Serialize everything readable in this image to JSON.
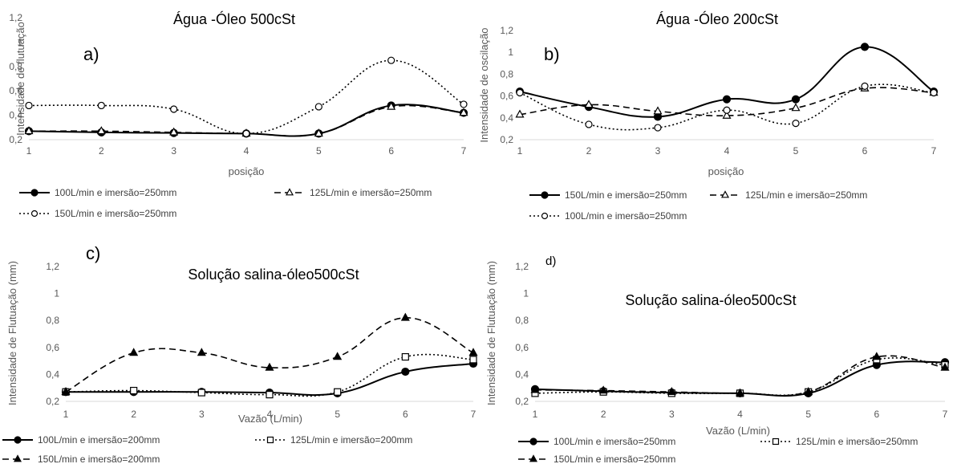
{
  "chart_data": [
    {
      "id": "a",
      "type": "line",
      "panel_letter": "a)",
      "title": "Água -Óleo 500cSt",
      "xlabel": "posição",
      "ylabel": "Intensidade de flutuação",
      "x": [
        1,
        2,
        3,
        4,
        5,
        6,
        7
      ],
      "ylim": [
        0.2,
        1.2
      ],
      "yticks": [
        "0,2",
        "0,4",
        "0,6",
        "0,8",
        "1",
        "1,2"
      ],
      "series": [
        {
          "name": "100L/min e imersão=250mm",
          "style": "solid",
          "marker": "filled-circle",
          "values": [
            0.27,
            0.26,
            0.255,
            0.25,
            0.25,
            0.48,
            0.42
          ]
        },
        {
          "name": "125L/min e imersão=250mm",
          "style": "dashed",
          "marker": "open-triangle",
          "values": [
            0.27,
            0.27,
            0.26,
            0.25,
            0.25,
            0.47,
            0.42
          ]
        },
        {
          "name": "150L/min e imersão=250mm",
          "style": "dotted",
          "marker": "open-circle",
          "values": [
            0.48,
            0.48,
            0.45,
            0.25,
            0.47,
            0.85,
            0.49
          ]
        }
      ]
    },
    {
      "id": "b",
      "type": "line",
      "panel_letter": "b)",
      "title": "Água -Óleo 200cSt",
      "xlabel": "posição",
      "ylabel": "Intensidade de oscilação",
      "x": [
        1,
        2,
        3,
        4,
        5,
        6,
        7
      ],
      "ylim": [
        0.2,
        1.2
      ],
      "yticks": [
        "0,2",
        "0,4",
        "0,6",
        "0,8",
        "1",
        "1,2"
      ],
      "series": [
        {
          "name": "150L/min e imersão=250mm",
          "style": "solid",
          "marker": "filled-circle",
          "values": [
            0.64,
            0.5,
            0.41,
            0.57,
            0.57,
            1.05,
            0.64
          ]
        },
        {
          "name": "125L/min e imersão=250mm",
          "style": "dashed",
          "marker": "open-triangle",
          "values": [
            0.43,
            0.52,
            0.46,
            0.42,
            0.49,
            0.67,
            0.63
          ]
        },
        {
          "name": "100L/min e imersão=250mm",
          "style": "dotted",
          "marker": "open-circle",
          "values": [
            0.63,
            0.34,
            0.31,
            0.47,
            0.35,
            0.69,
            0.63
          ]
        }
      ]
    },
    {
      "id": "c",
      "type": "line",
      "panel_letter": "c)",
      "title": "Solução salina-óleo500cSt",
      "xlabel": "Vazão (L/min)",
      "ylabel": "Intensidade de Flutuação (mm)",
      "x": [
        1,
        2,
        3,
        4,
        5,
        6,
        7
      ],
      "ylim": [
        0.2,
        1.2
      ],
      "yticks": [
        "0,2",
        "0,4",
        "0,6",
        "0,8",
        "1",
        "1,2"
      ],
      "series": [
        {
          "name": "100L/min e imersão=200mm",
          "style": "solid",
          "marker": "filled-circle",
          "values": [
            0.27,
            0.27,
            0.27,
            0.265,
            0.26,
            0.42,
            0.48
          ]
        },
        {
          "name": "125L/min e imersão=200mm",
          "style": "dotted",
          "marker": "open-square",
          "values": [
            0.27,
            0.28,
            0.265,
            0.25,
            0.27,
            0.53,
            0.51
          ]
        },
        {
          "name": "150L/min e imersão=200mm",
          "style": "dashed",
          "marker": "filled-triangle",
          "values": [
            0.27,
            0.56,
            0.56,
            0.45,
            0.53,
            0.82,
            0.56
          ]
        }
      ]
    },
    {
      "id": "d",
      "type": "line",
      "panel_letter": "d)",
      "title": "Solução salina-óleo500cSt",
      "xlabel": "Vazão (L/min)",
      "ylabel": "Intensidade de Flutuação (mm)",
      "x": [
        1,
        2,
        3,
        4,
        5,
        6,
        7
      ],
      "ylim": [
        0.2,
        1.2
      ],
      "yticks": [
        "0,2",
        "0,4",
        "0,6",
        "0,8",
        "1",
        "1,2"
      ],
      "series": [
        {
          "name": "100L/min e imersão=250mm",
          "style": "solid",
          "marker": "filled-circle",
          "values": [
            0.29,
            0.275,
            0.265,
            0.26,
            0.26,
            0.47,
            0.49
          ]
        },
        {
          "name": "125L/min e imersão=250mm",
          "style": "dotted",
          "marker": "open-square",
          "values": [
            0.26,
            0.27,
            0.26,
            0.26,
            0.27,
            0.51,
            0.47
          ]
        },
        {
          "name": "150L/min e imersão=250mm",
          "style": "dashed",
          "marker": "filled-triangle",
          "values": [
            0.285,
            0.28,
            0.27,
            0.26,
            0.27,
            0.53,
            0.45
          ]
        }
      ]
    }
  ]
}
